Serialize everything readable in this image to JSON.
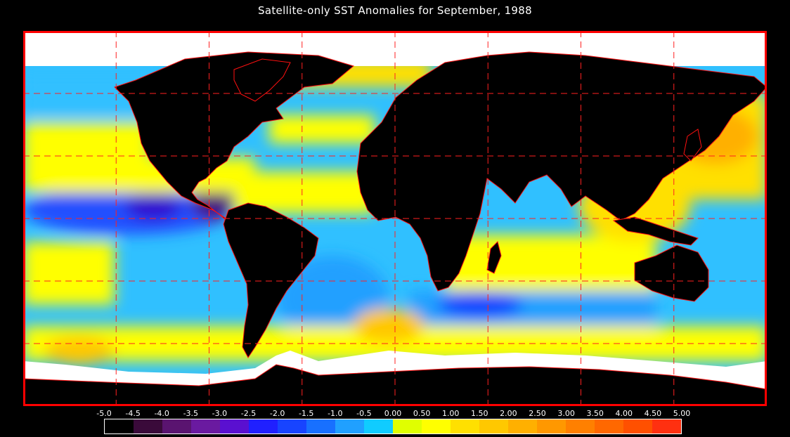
{
  "title": "Satellite-only SST Anomalies for September, 1988",
  "legend": {
    "tick_labels": [
      "-5.0",
      "-4.5",
      "-4.0",
      "-3.5",
      "-3.0",
      "-2.5",
      "-2.0",
      "-1.5",
      "-1.0",
      "-0.5",
      "0.00",
      "0.50",
      "1.00",
      "1.50",
      "2.00",
      "2.50",
      "3.00",
      "3.50",
      "4.00",
      "4.50",
      "5.00"
    ],
    "colors": [
      "#000000",
      "#3a0a3a",
      "#5a1470",
      "#6a1aa0",
      "#5a10d0",
      "#2020ff",
      "#1844ff",
      "#1870ff",
      "#20a0ff",
      "#10ccff",
      "#e0ff00",
      "#ffff00",
      "#ffe000",
      "#ffc800",
      "#ffb000",
      "#ff9800",
      "#ff8000",
      "#ff6800",
      "#ff5000",
      "#ff3010"
    ]
  },
  "colors": {
    "background": "#000000",
    "land": "#000000",
    "ice": "#ffffff",
    "border": "#ff0000",
    "grid": "#ff0000"
  },
  "map": {
    "projection": "equirectangular",
    "lon_range": [
      -180,
      180
    ],
    "lat_range": [
      -90,
      90
    ],
    "grid_lon_step": 45,
    "grid_lat_step": 30
  }
}
